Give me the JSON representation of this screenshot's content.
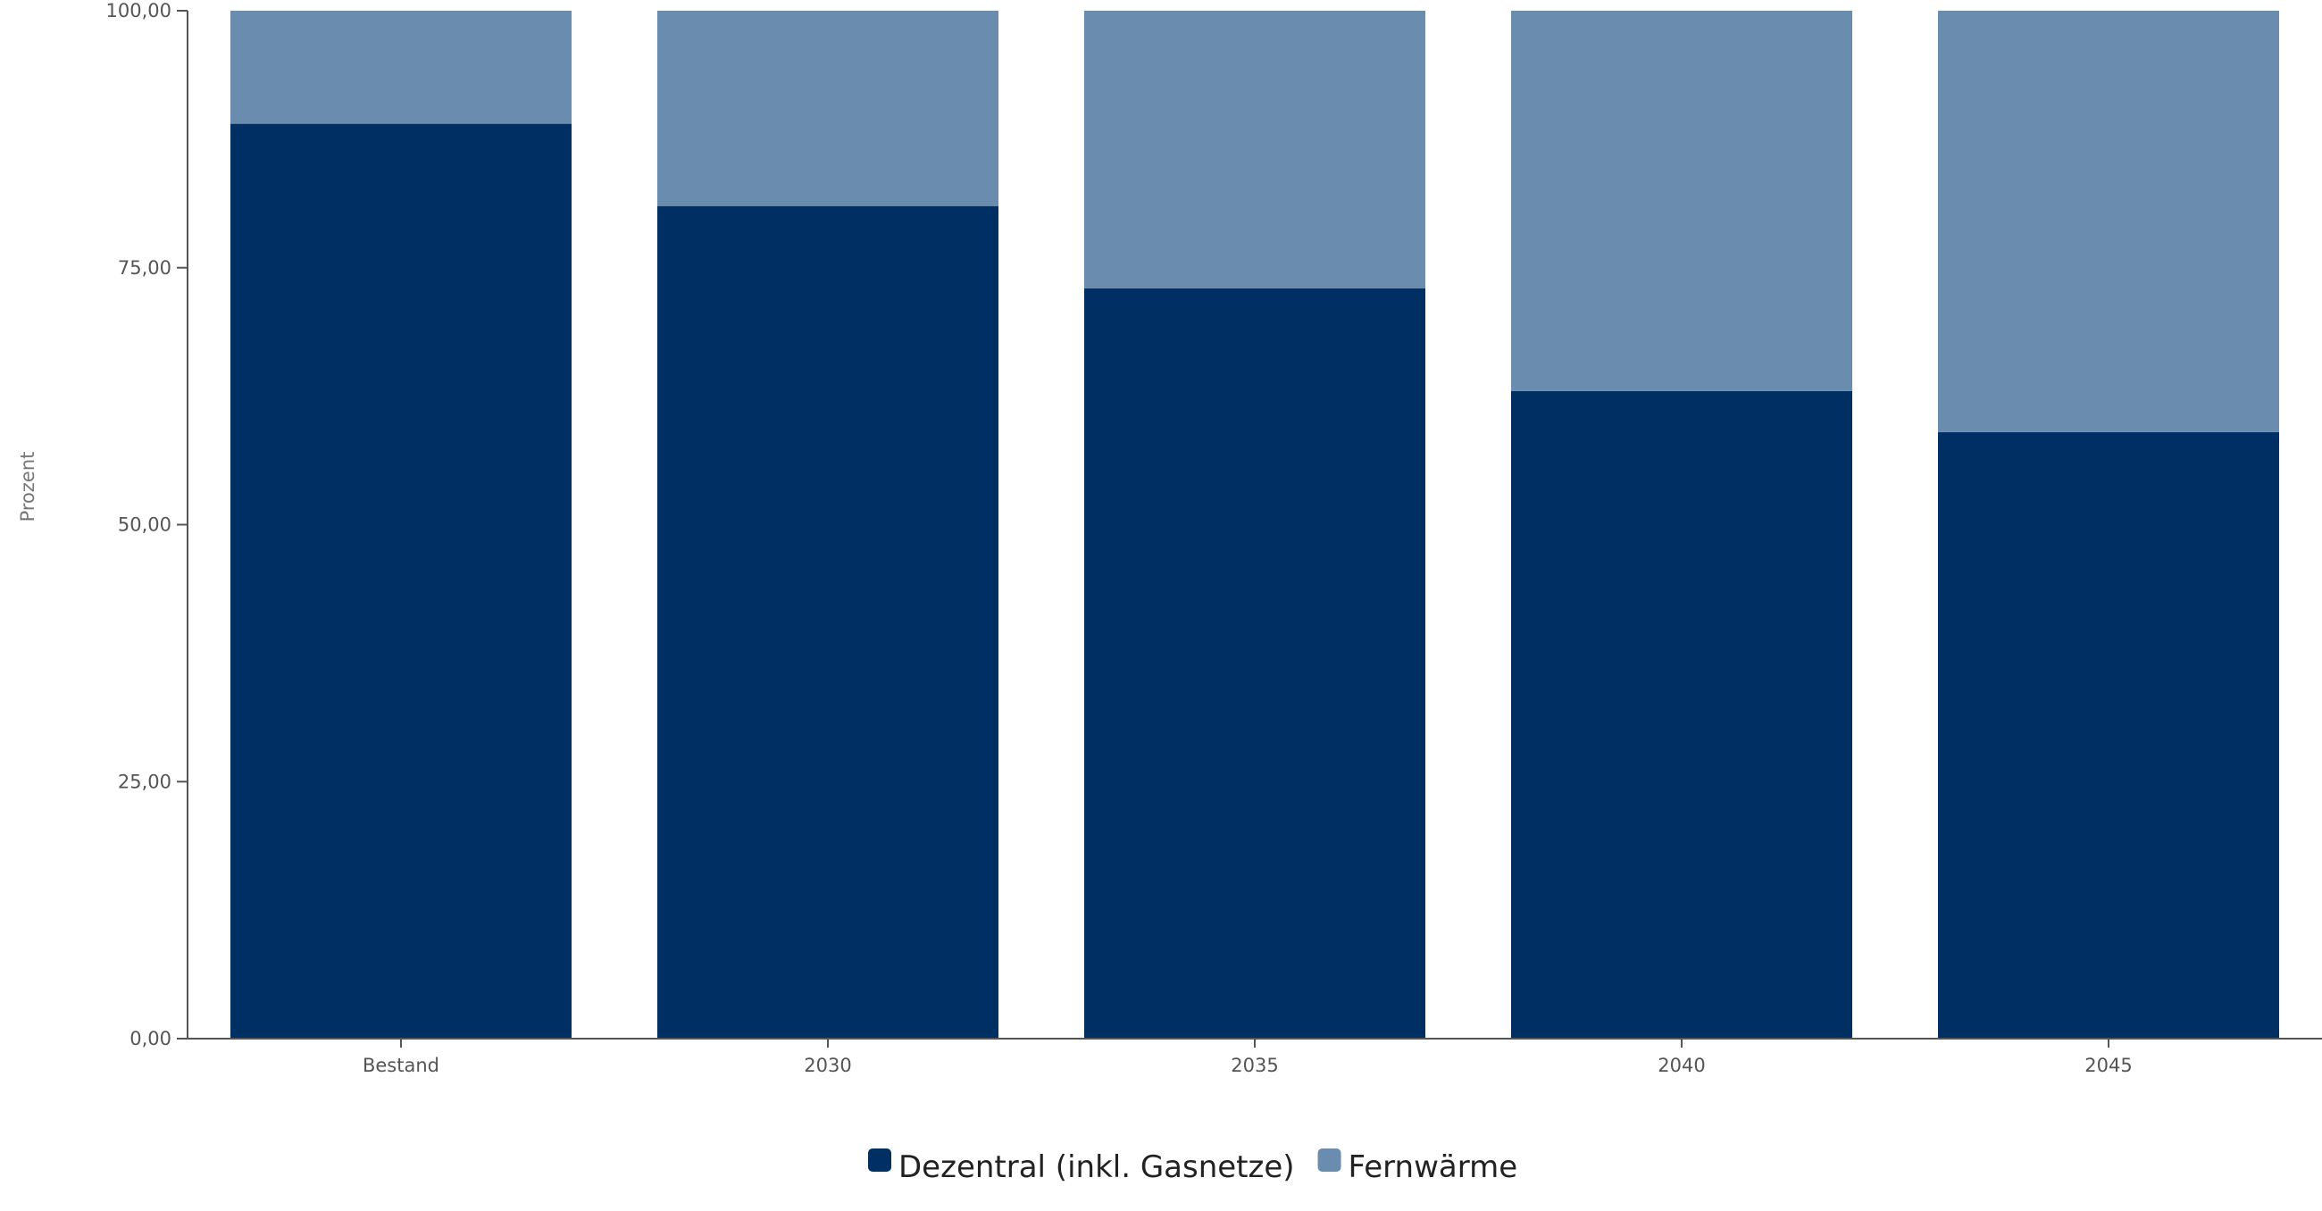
{
  "chart_data": {
    "type": "bar",
    "stacked": true,
    "categories": [
      "Bestand",
      "2030",
      "2035",
      "2040",
      "2045"
    ],
    "series": [
      {
        "name": "Dezentral (inkl. Gasnetze)",
        "color": "#003063",
        "values": [
          89,
          81,
          73,
          63,
          59
        ]
      },
      {
        "name": "Fernwärme",
        "color": "#6a8caf",
        "values": [
          11,
          19,
          27,
          37,
          41
        ]
      }
    ],
    "ylabel": "Prozent",
    "xlabel": "",
    "ylim": [
      0,
      100
    ],
    "yticks": [
      "0,00",
      "25,00",
      "50,00",
      "75,00",
      "100,00"
    ],
    "ytick_values": [
      0,
      25,
      50,
      75,
      100
    ],
    "grid": false,
    "legend": "bottom-center"
  }
}
